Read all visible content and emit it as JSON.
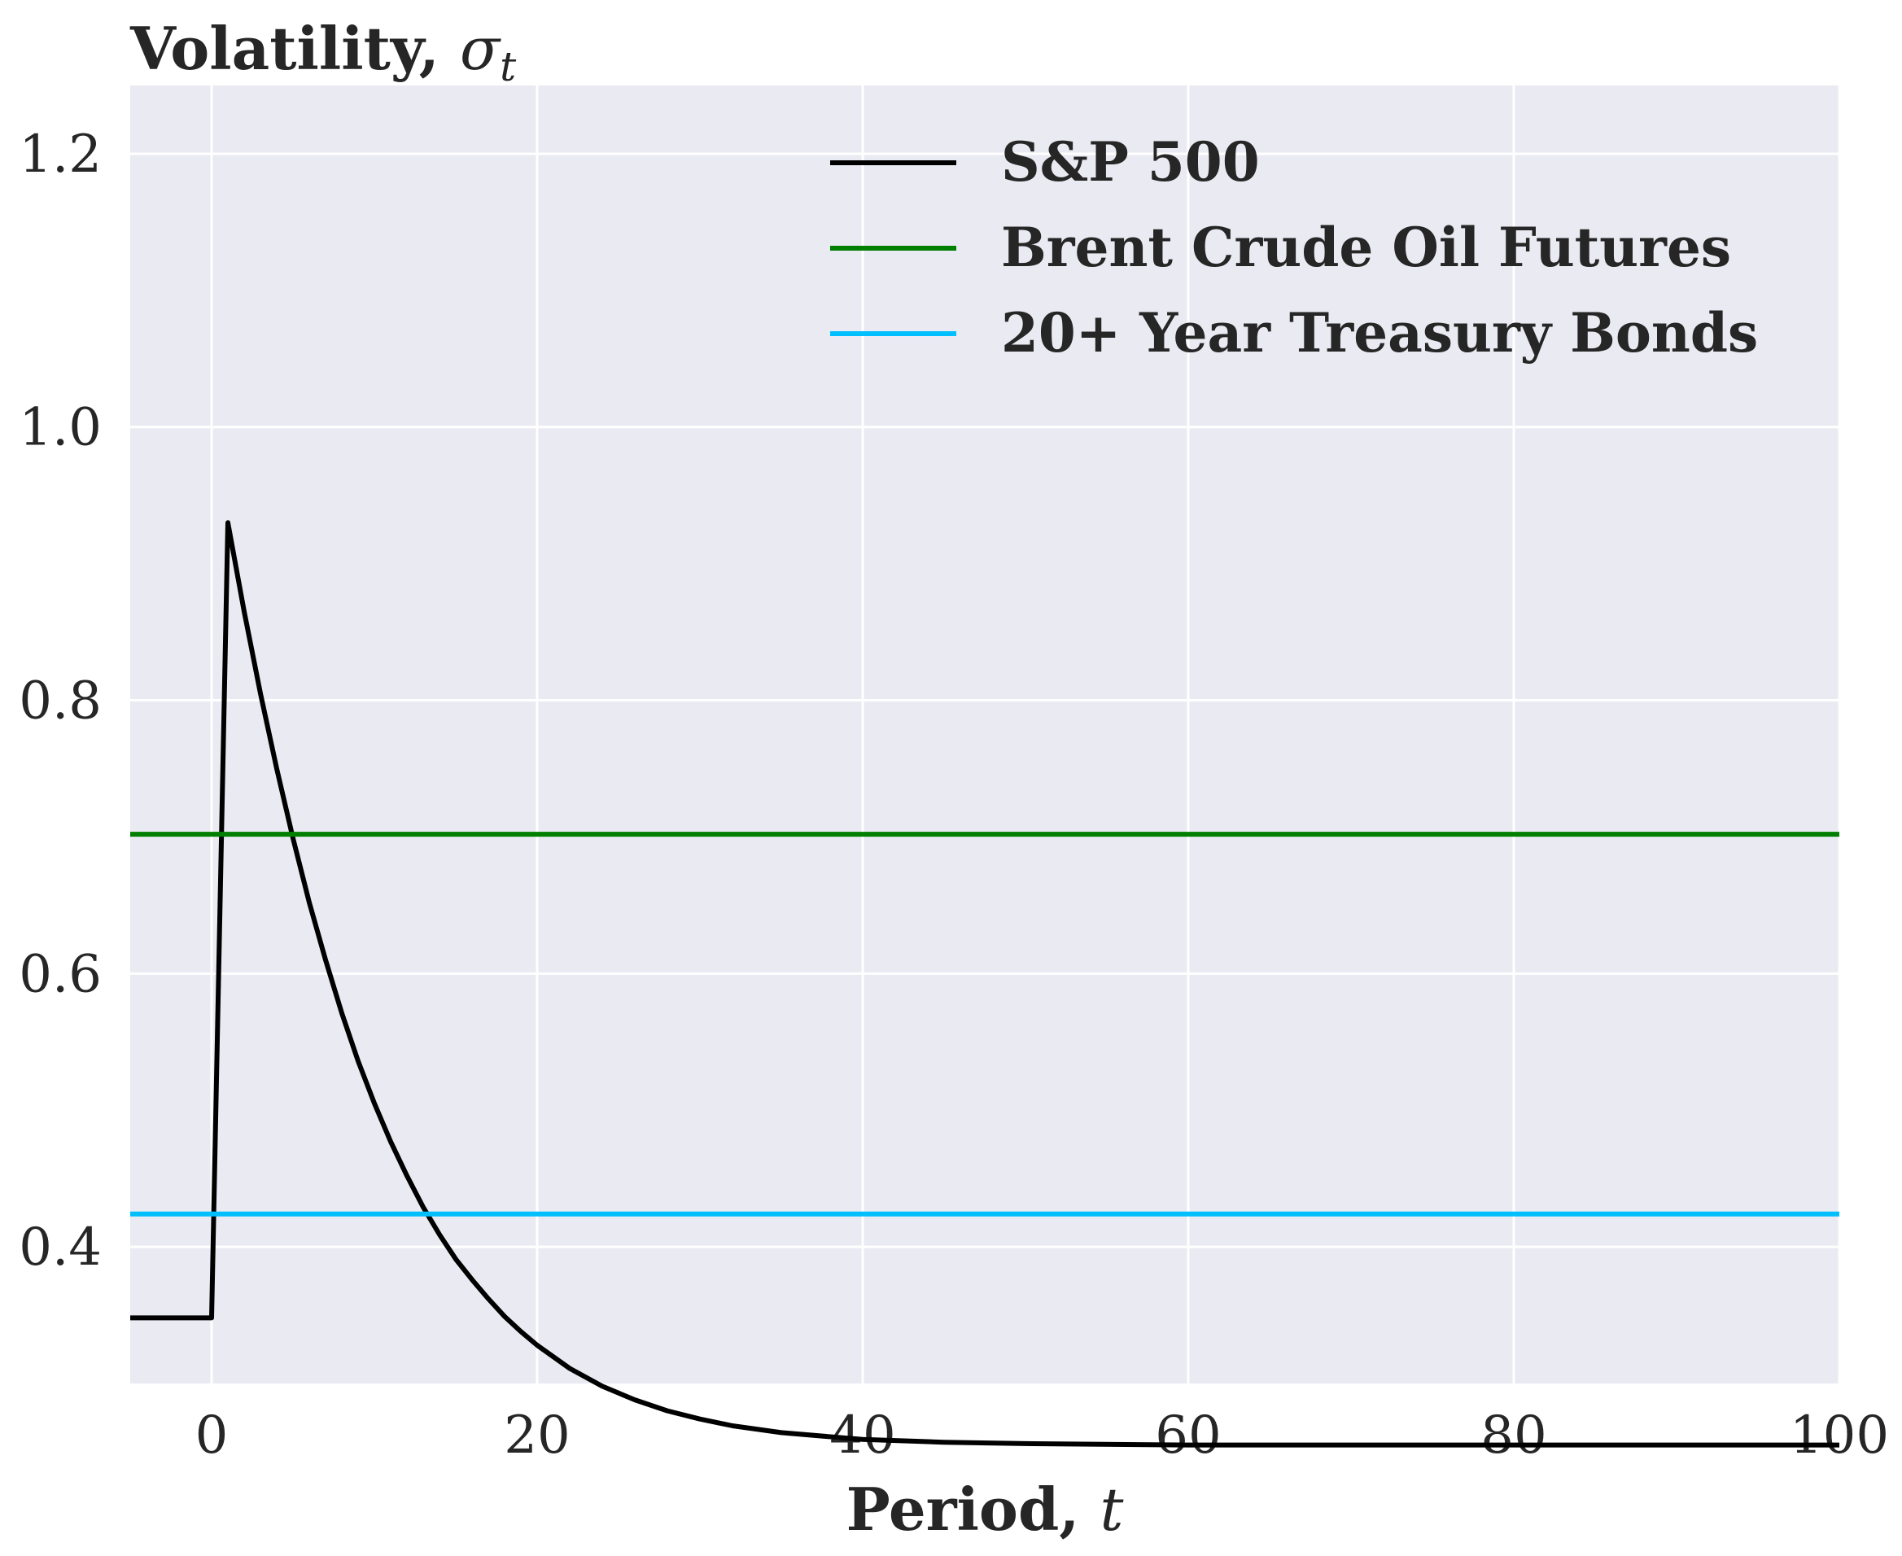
{
  "chart_data": {
    "type": "line",
    "title": "",
    "ylabel": "Volatility, ",
    "ylabel_symbol": "σ",
    "ylabel_subscript": "t",
    "xlabel": "Period, ",
    "xlabel_symbol": "t",
    "xlim": [
      -5,
      100
    ],
    "ylim": [
      0.3,
      1.25
    ],
    "xticks": [
      0,
      20,
      40,
      60,
      80,
      100
    ],
    "xtick_labels": [
      "0",
      "20",
      "40",
      "60",
      "80",
      "100"
    ],
    "yticks": [
      0.4,
      0.6,
      0.8,
      1.0,
      1.2
    ],
    "ytick_labels": [
      "0.4",
      "0.6",
      "0.8",
      "1.0",
      "1.2"
    ],
    "grid": true,
    "legend_position": "upper-right",
    "background_color": "#eaeaf2",
    "series": [
      {
        "name": "S&P 500",
        "color": "#000000",
        "x": [
          -5,
          0,
          1,
          2,
          3,
          4,
          5,
          6,
          7,
          8,
          9,
          10,
          11,
          12,
          13,
          14,
          15,
          16,
          17,
          18,
          19,
          20,
          22,
          24,
          26,
          28,
          30,
          32,
          35,
          40,
          45,
          50,
          60,
          70,
          80,
          90,
          100
        ],
        "y": [
          0.348,
          0.348,
          0.93,
          0.865,
          0.805,
          0.75,
          0.699,
          0.652,
          0.61,
          0.571,
          0.536,
          0.505,
          0.477,
          0.452,
          0.429,
          0.409,
          0.391,
          0.376,
          0.362,
          0.349,
          0.338,
          0.328,
          0.311,
          0.298,
          0.288,
          0.28,
          0.274,
          0.269,
          0.264,
          0.259,
          0.257,
          0.256,
          0.255,
          0.255,
          0.255,
          0.255,
          0.255
        ]
      },
      {
        "name": "Brent Crude Oil Futures",
        "color": "#007f00",
        "x": [
          -5,
          100
        ],
        "y": [
          0.702,
          0.702
        ]
      },
      {
        "name": "20+ Year Treasury Bonds",
        "color": "#00bfff",
        "x": [
          -5,
          100
        ],
        "y": [
          0.424,
          0.424
        ]
      }
    ]
  }
}
